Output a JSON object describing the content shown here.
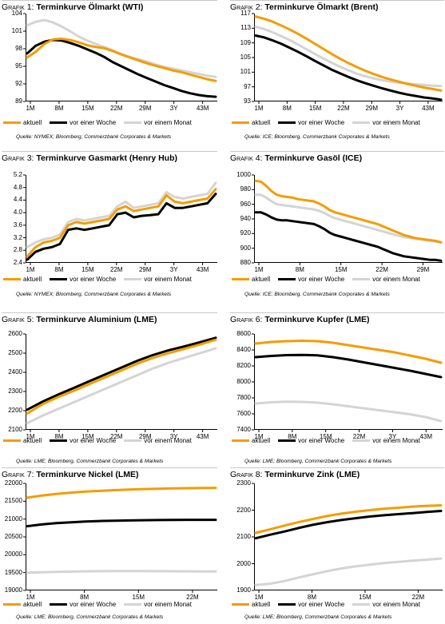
{
  "colors": {
    "aktuell": "#f59c00",
    "woche": "#000000",
    "monat": "#d4d4d4"
  },
  "chart_data": [
    {
      "type": "line",
      "title_prefix": "Grafik 1:",
      "title": "Terminkurve Ölmarkt (WTI)",
      "ylim": [
        89,
        104
      ],
      "yticks": [
        "104",
        "101",
        "98",
        "95",
        "92",
        "89"
      ],
      "xticks": [
        "1M",
        "8M",
        "15M",
        "22M",
        "29M",
        "3Y",
        "43M"
      ],
      "x": [
        0,
        2,
        4,
        6,
        8,
        10,
        12,
        14,
        16,
        18,
        20,
        22,
        24,
        26,
        28,
        30,
        32,
        34,
        36,
        38,
        40,
        42,
        44
      ],
      "series": [
        {
          "name": "aktuell",
          "key": "aktuell",
          "values": [
            96.5,
            97.5,
            98.8,
            99.6,
            99.7,
            99.5,
            99.1,
            98.6,
            98.3,
            98.1,
            97.6,
            97.0,
            96.5,
            96.0,
            95.5,
            95.1,
            94.7,
            94.3,
            94.0,
            93.6,
            93.2,
            92.8,
            92.5
          ]
        },
        {
          "name": "vor einer Woche",
          "key": "woche",
          "values": [
            97.2,
            98.5,
            99.2,
            99.5,
            99.4,
            99.0,
            98.5,
            97.9,
            97.3,
            96.6,
            95.7,
            95.0,
            94.3,
            93.6,
            93.0,
            92.4,
            91.8,
            91.3,
            90.8,
            90.4,
            90.1,
            89.9,
            89.8
          ]
        },
        {
          "name": "vor einem Monat",
          "key": "monat",
          "values": [
            102.0,
            102.6,
            102.9,
            102.5,
            101.8,
            101.0,
            100.1,
            99.4,
            98.8,
            98.3,
            97.7,
            97.1,
            96.6,
            96.2,
            95.8,
            95.3,
            94.9,
            94.6,
            94.3,
            94.0,
            93.7,
            93.4,
            93.2
          ]
        }
      ],
      "legend": [
        "aktuell",
        "vor einer Woche",
        "vor einem Monat"
      ],
      "source": "Quelle: NYMEX; Bloomberg, Commerzbank Corporates & Markets"
    },
    {
      "type": "line",
      "title_prefix": "Grafik 2:",
      "title": "Terminkurve Ölmarkt (Brent)",
      "ylim": [
        93,
        117
      ],
      "yticks": [
        "117",
        "113",
        "109",
        "105",
        "101",
        "97",
        "93"
      ],
      "xticks": [
        "1M",
        "8M",
        "15M",
        "22M",
        "29M",
        "3Y",
        "43M"
      ],
      "x": [
        0,
        2,
        4,
        6,
        8,
        10,
        12,
        14,
        16,
        18,
        20,
        22,
        24,
        26,
        28,
        30,
        32,
        34,
        36,
        38,
        40,
        42,
        44
      ],
      "series": [
        {
          "name": "aktuell",
          "key": "aktuell",
          "values": [
            116.2,
            115.6,
            114.8,
            113.8,
            112.7,
            111.5,
            110.2,
            108.8,
            107.4,
            106.0,
            104.7,
            103.5,
            102.4,
            101.4,
            100.5,
            99.7,
            99.0,
            98.4,
            97.8,
            97.3,
            96.8,
            96.4,
            96.0
          ]
        },
        {
          "name": "vor einer Woche",
          "key": "woche",
          "values": [
            111.0,
            110.5,
            109.7,
            108.8,
            107.7,
            106.6,
            105.4,
            104.1,
            102.9,
            101.7,
            100.7,
            99.7,
            98.8,
            98.0,
            97.3,
            96.6,
            96.0,
            95.4,
            94.9,
            94.5,
            94.1,
            93.8,
            93.5
          ]
        },
        {
          "name": "vor einem Monat",
          "key": "monat",
          "values": [
            113.4,
            112.8,
            111.9,
            110.9,
            109.8,
            108.6,
            107.3,
            106.0,
            104.8,
            103.6,
            102.5,
            101.5,
            100.6,
            99.9,
            99.3,
            98.8,
            98.4,
            98.1,
            97.9,
            97.7,
            97.5,
            97.3,
            97.2
          ]
        }
      ],
      "legend": [
        "aktuell",
        "vor einer Woche",
        "vor einem Monat"
      ],
      "source": "Quelle: ICE; Bloomberg, Commerzbank Corporates & Markets"
    },
    {
      "type": "line",
      "title_prefix": "Grafik 3:",
      "title": "Terminkurve Gasmarkt (Henry Hub)",
      "ylim": [
        2.4,
        5.2
      ],
      "yticks": [
        "5.2",
        "4.8",
        "4.4",
        "4.0",
        "3.6",
        "3.2",
        "2.8",
        "2.4"
      ],
      "xticks": [
        "1M",
        "8M",
        "15M",
        "22M",
        "29M",
        "3Y",
        "43M"
      ],
      "x": [
        0,
        2,
        4,
        6,
        8,
        10,
        12,
        14,
        16,
        18,
        20,
        22,
        24,
        26,
        28,
        30,
        32,
        34,
        36,
        38,
        40,
        42,
        44,
        46
      ],
      "series": [
        {
          "name": "aktuell",
          "key": "aktuell",
          "values": [
            2.6,
            2.9,
            3.05,
            3.1,
            3.2,
            3.6,
            3.7,
            3.65,
            3.7,
            3.75,
            3.8,
            4.1,
            4.2,
            4.05,
            4.1,
            4.15,
            4.2,
            4.55,
            4.35,
            4.3,
            4.35,
            4.4,
            4.45,
            4.75
          ]
        },
        {
          "name": "vor einer Woche",
          "key": "woche",
          "values": [
            2.5,
            2.75,
            2.85,
            2.9,
            3.0,
            3.45,
            3.5,
            3.45,
            3.5,
            3.55,
            3.6,
            3.95,
            4.0,
            3.85,
            3.9,
            3.92,
            3.95,
            4.3,
            4.15,
            4.15,
            4.2,
            4.25,
            4.3,
            4.6
          ]
        },
        {
          "name": "vor einem Monat",
          "key": "monat",
          "values": [
            2.9,
            3.05,
            3.15,
            3.2,
            3.3,
            3.7,
            3.8,
            3.75,
            3.8,
            3.85,
            3.9,
            4.2,
            4.35,
            4.15,
            4.2,
            4.25,
            4.3,
            4.65,
            4.5,
            4.45,
            4.5,
            4.55,
            4.6,
            4.95
          ]
        }
      ],
      "legend": [
        "aktuell",
        "vor einer Woche",
        "vor einem Monat"
      ],
      "source": "Quelle: NYMEX; Bloomberg, Commerzbank Corporates & Markets"
    },
    {
      "type": "line",
      "title_prefix": "Grafik 4:",
      "title": "Terminkurve Gasöl (ICE)",
      "ylim": [
        880,
        1000
      ],
      "yticks": [
        "1000",
        "980",
        "960",
        "940",
        "920",
        "900",
        "880"
      ],
      "xticks": [
        "1M",
        "8M",
        "15M",
        "22M",
        "29M"
      ],
      "x": [
        0,
        1,
        2,
        3,
        4,
        5,
        6,
        7,
        8,
        9,
        10,
        11,
        12,
        13,
        14,
        15,
        16,
        17,
        18,
        19,
        20,
        21,
        22,
        23,
        24,
        25,
        26,
        27,
        28,
        29,
        30,
        31,
        32,
        33,
        34,
        35
      ],
      "series": [
        {
          "name": "aktuell",
          "key": "aktuell",
          "values": [
            992,
            991,
            985,
            978,
            973,
            971,
            970,
            969,
            967,
            966,
            965,
            964,
            961,
            957,
            952,
            949,
            947,
            945,
            943,
            941,
            939,
            937,
            935,
            933,
            930,
            927,
            924,
            921,
            918,
            916,
            914,
            913,
            912,
            911,
            910,
            908
          ]
        },
        {
          "name": "vor einer Woche",
          "key": "woche",
          "values": [
            949,
            949,
            946,
            942,
            939,
            938,
            938,
            937,
            936,
            935,
            934,
            933,
            930,
            926,
            921,
            918,
            916,
            914,
            912,
            910,
            908,
            906,
            904,
            902,
            899,
            896,
            893,
            891,
            889,
            888,
            887,
            886,
            885,
            884,
            884,
            883
          ]
        },
        {
          "name": "vor einem Monat",
          "key": "monat",
          "values": [
            973,
            973,
            969,
            964,
            960,
            959,
            958,
            957,
            956,
            955,
            954,
            953,
            951,
            948,
            944,
            941,
            939,
            937,
            935,
            933,
            931,
            929,
            927,
            925,
            923,
            921,
            919,
            917,
            915,
            914,
            913,
            912,
            911,
            910,
            909,
            908
          ]
        }
      ],
      "legend": [
        "aktuell",
        "vor einer Woche",
        "vor einem Monat"
      ],
      "source": "Quelle: ICE; Bloomberg, Commerzbank Corporates & Markets"
    },
    {
      "type": "line",
      "title_prefix": "Grafik 5:",
      "title": "Terminkurve Aluminium (LME)",
      "ylim": [
        2100,
        2600
      ],
      "yticks": [
        "2600",
        "2500",
        "2400",
        "2300",
        "2200",
        "2100"
      ],
      "xticks": [
        "1M",
        "8M",
        "15M",
        "22M",
        "29M",
        "3Y",
        "43M"
      ],
      "x": [
        0,
        4,
        8,
        12,
        16,
        20,
        24,
        28,
        32,
        36,
        40,
        44,
        48
      ],
      "series": [
        {
          "name": "aktuell",
          "key": "aktuell",
          "values": [
            2185,
            2235,
            2272,
            2305,
            2340,
            2375,
            2410,
            2445,
            2475,
            2500,
            2522,
            2545,
            2570
          ]
        },
        {
          "name": "vor einer Woche",
          "key": "woche",
          "values": [
            2205,
            2248,
            2285,
            2320,
            2355,
            2390,
            2425,
            2460,
            2490,
            2515,
            2535,
            2557,
            2580
          ]
        },
        {
          "name": "vor einem Monat",
          "key": "monat",
          "values": [
            2135,
            2175,
            2210,
            2245,
            2280,
            2315,
            2350,
            2385,
            2420,
            2450,
            2475,
            2500,
            2525
          ]
        }
      ],
      "legend": [
        "aktuell",
        "vor einer Woche",
        "vor einem Monat"
      ],
      "source": "Quelle: LME; Bloomberg, Commerzbank Corporates & Markets"
    },
    {
      "type": "line",
      "title_prefix": "Grafik 6:",
      "title": "Terminkurve Kupfer (LME)",
      "ylim": [
        7400,
        8600
      ],
      "yticks": [
        "8600",
        "8400",
        "8200",
        "8000",
        "7800",
        "7600",
        "7400"
      ],
      "xticks": [
        "1M",
        "8M",
        "15M",
        "22M",
        "3Y",
        "43M"
      ],
      "x": [
        0,
        4,
        8,
        12,
        16,
        20,
        24,
        28,
        32,
        36,
        40,
        44,
        48
      ],
      "series": [
        {
          "name": "aktuell",
          "key": "aktuell",
          "values": [
            8480,
            8500,
            8510,
            8515,
            8510,
            8490,
            8460,
            8430,
            8400,
            8370,
            8330,
            8290,
            8240
          ]
        },
        {
          "name": "vor einer Woche",
          "key": "woche",
          "values": [
            8310,
            8325,
            8335,
            8338,
            8332,
            8310,
            8280,
            8245,
            8210,
            8175,
            8140,
            8100,
            8060
          ]
        },
        {
          "name": "vor einem Monat",
          "key": "monat",
          "values": [
            7730,
            7745,
            7752,
            7750,
            7740,
            7720,
            7695,
            7670,
            7645,
            7620,
            7595,
            7560,
            7510
          ]
        }
      ],
      "legend": [
        "aktuell",
        "vor einer Woche",
        "vor einem Monat"
      ],
      "source": "Quelle: LME; Bloomberg, Commerzbank Corporates & Markets"
    },
    {
      "type": "line",
      "title_prefix": "Grafik 7:",
      "title": "Terminkurve Nickel (LME)",
      "ylim": [
        19000,
        22000
      ],
      "yticks": [
        "22000",
        "21500",
        "21000",
        "20500",
        "20000",
        "19500",
        "19000"
      ],
      "xticks": [
        "1M",
        "8M",
        "15M",
        "22M"
      ],
      "x": [
        0,
        2,
        4,
        6,
        8,
        10,
        12,
        14,
        16,
        18,
        20,
        22,
        24,
        26
      ],
      "series": [
        {
          "name": "aktuell",
          "key": "aktuell",
          "values": [
            21600,
            21660,
            21705,
            21740,
            21770,
            21790,
            21810,
            21825,
            21840,
            21850,
            21858,
            21865,
            21870,
            21875
          ]
        },
        {
          "name": "vor einer Woche",
          "key": "woche",
          "values": [
            20800,
            20850,
            20885,
            20910,
            20930,
            20945,
            20955,
            20962,
            20968,
            20972,
            20975,
            20978,
            20980,
            20980
          ]
        },
        {
          "name": "vor einem Monat",
          "key": "monat",
          "values": [
            19500,
            19510,
            19520,
            19528,
            19535,
            19540,
            19542,
            19543,
            19542,
            19540,
            19538,
            19535,
            19532,
            19530
          ]
        }
      ],
      "legend": [
        "aktuell",
        "vor einer Woche",
        "vor einem Monat"
      ],
      "source": "Quelle: LME; Bloomberg, Commerzbank Corporates & Markets"
    },
    {
      "type": "line",
      "title_prefix": "Grafik 8:",
      "title": "Terminkurve Zink (LME)",
      "ylim": [
        1900,
        2300
      ],
      "yticks": [
        "2300",
        "2200",
        "2100",
        "2000",
        "1900"
      ],
      "xticks": [
        "1M",
        "8M",
        "15M",
        "22M"
      ],
      "x": [
        0,
        2,
        4,
        6,
        8,
        10,
        12,
        14,
        16,
        18,
        20,
        22,
        24,
        26
      ],
      "series": [
        {
          "name": "aktuell",
          "key": "aktuell",
          "values": [
            2115,
            2128,
            2142,
            2155,
            2167,
            2178,
            2187,
            2194,
            2200,
            2205,
            2209,
            2213,
            2216,
            2218
          ]
        },
        {
          "name": "vor einer Woche",
          "key": "woche",
          "values": [
            2095,
            2108,
            2120,
            2133,
            2145,
            2155,
            2163,
            2170,
            2176,
            2181,
            2185,
            2189,
            2193,
            2197
          ]
        },
        {
          "name": "vor einem Monat",
          "key": "monat",
          "values": [
            1920,
            1925,
            1935,
            1948,
            1960,
            1972,
            1982,
            1990,
            1996,
            2002,
            2007,
            2011,
            2015,
            2019
          ]
        }
      ],
      "legend": [
        "aktuell",
        "vor einer Woche",
        "vor einem Monat"
      ],
      "source": "Quelle: LME; Bloomberg, Commerzbank Corporates & Markets"
    }
  ]
}
